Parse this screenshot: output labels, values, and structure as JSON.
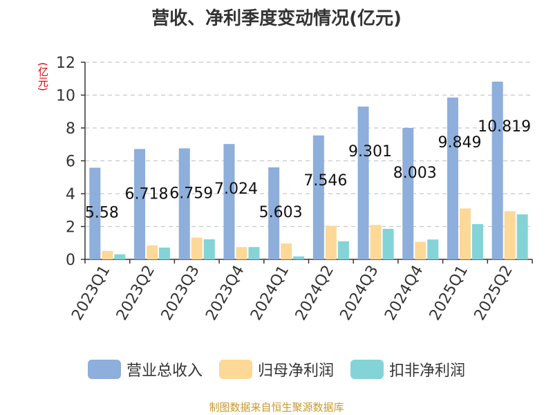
{
  "colors": {
    "revenue": "#8eaedb",
    "parent_profit": "#fdd897",
    "non_recurring_profit": "#84d3d7",
    "axis": "#333333",
    "grid": "#c8c8c8",
    "footer": "#c8982f",
    "unit": "#e00000"
  },
  "chart_data": {
    "type": "bar",
    "title": "营收、净利季度变动情况(亿元)",
    "ylabel": "(亿元)",
    "ylim": [
      0,
      12
    ],
    "yticks": [
      0,
      2,
      4,
      6,
      8,
      10,
      12
    ],
    "grid": true,
    "legend_position": "bottom",
    "categories": [
      "2023Q1",
      "2023Q2",
      "2023Q3",
      "2023Q4",
      "2024Q1",
      "2024Q2",
      "2024Q3",
      "2024Q4",
      "2025Q1",
      "2025Q2"
    ],
    "series": [
      {
        "name": "营业总收入",
        "values": [
          5.58,
          6.718,
          6.759,
          7.024,
          5.603,
          7.546,
          9.301,
          8.003,
          9.849,
          10.819
        ]
      },
      {
        "name": "归母净利润",
        "values": [
          0.52,
          0.86,
          1.33,
          0.75,
          0.97,
          2.05,
          2.1,
          1.07,
          3.1,
          2.93
        ]
      },
      {
        "name": "扣非净利润",
        "values": [
          0.31,
          0.72,
          1.22,
          0.75,
          0.18,
          1.1,
          1.86,
          1.21,
          2.15,
          2.74
        ]
      }
    ],
    "data_labels": [
      "5.58",
      "6.718",
      "6.759",
      "7.024",
      "5.603",
      "7.546",
      "9.301",
      "8.003",
      "9.849",
      "10.819"
    ]
  },
  "footer": "制图数据来自恒生聚源数据库"
}
